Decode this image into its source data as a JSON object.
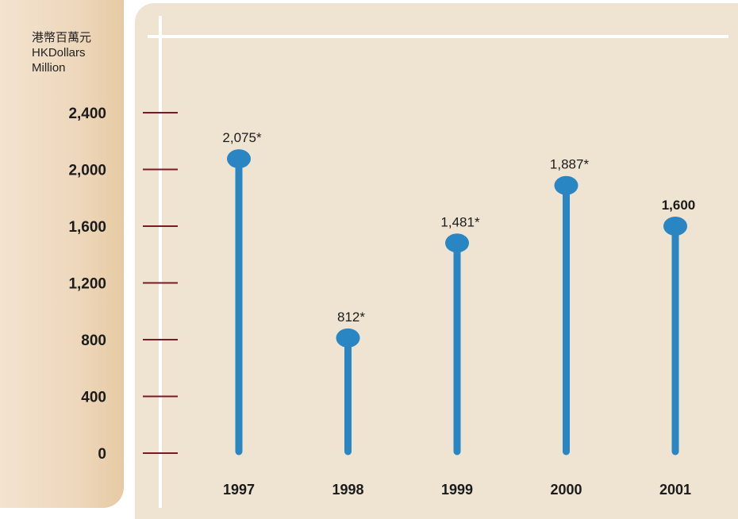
{
  "chart_data": {
    "type": "bar",
    "unit_label": [
      "港幣百萬元",
      "HKDollars",
      "Million"
    ],
    "categories": [
      "1997",
      "1998",
      "1999",
      "2000",
      "2001"
    ],
    "values": [
      2075,
      812,
      1481,
      1887,
      1600
    ],
    "data_labels": [
      "2,075*",
      "812*",
      "1,481*",
      "1,887*",
      "1,600"
    ],
    "yticks": [
      0,
      400,
      800,
      1200,
      1600,
      2000,
      2400
    ],
    "ytick_labels": [
      "0",
      "400",
      "800",
      "1,200",
      "1,600",
      "2,000",
      "2,400"
    ],
    "ylim": [
      0,
      2400
    ],
    "grid": false,
    "colors": {
      "bar": "#2a85c3",
      "tick_mark": "#7a1a22",
      "axis": "#ffffff"
    }
  }
}
